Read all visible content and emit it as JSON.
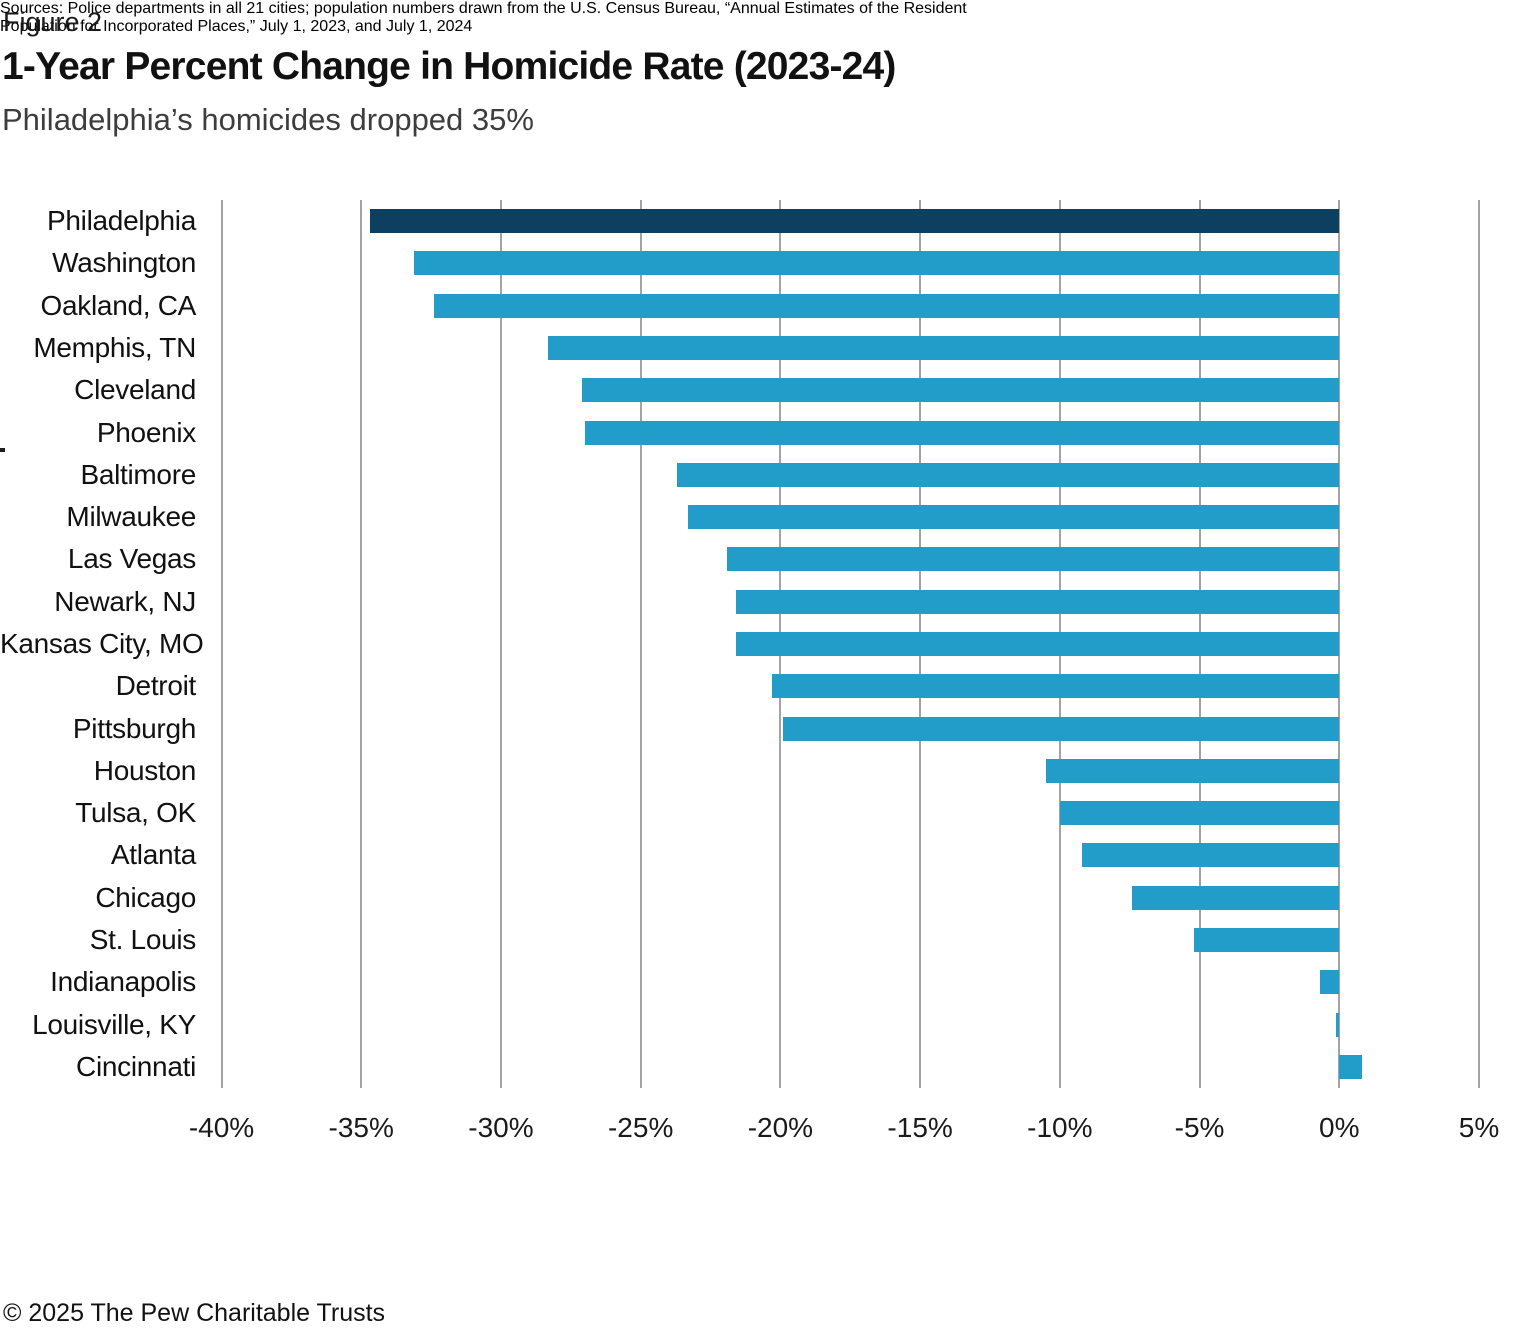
{
  "header": {
    "figure_label": "Figure 2",
    "title": "1-Year Percent Change in Homicide Rate (2023-24)",
    "subtitle": "Philadelphia’s homicides dropped 35%"
  },
  "footer": {
    "sources_line1": "Sources: Police departments in all 21 cities; population numbers drawn from the U.S. Census Bureau, “Annual Estimates of the Resident",
    "sources_line2": "Population for Incorporated Places,” July 1, 2023, and July 1, 2024",
    "copyright": "© 2025 The Pew Charitable Trusts"
  },
  "chart_data": {
    "type": "bar",
    "orientation": "horizontal",
    "title": "1-Year Percent Change in Homicide Rate (2023-24)",
    "subtitle": "Philadelphia’s homicides dropped 35%",
    "categories": [
      "Philadelphia",
      "Washington",
      "Oakland, CA",
      "Memphis, TN",
      "Cleveland",
      "Phoenix",
      "Baltimore",
      "Milwaukee",
      "Las Vegas",
      "Newark, NJ",
      "Kansas City, MO",
      "Detroit",
      "Pittsburgh",
      "Houston",
      "Tulsa, OK",
      "Atlanta",
      "Chicago",
      "St. Louis",
      "Indianapolis",
      "Louisville, KY",
      "Cincinnati"
    ],
    "values": [
      -34.7,
      -33.1,
      -32.4,
      -28.3,
      -27.1,
      -27.0,
      -23.7,
      -23.3,
      -21.9,
      -21.6,
      -21.6,
      -20.3,
      -19.9,
      -10.5,
      -10.0,
      -9.2,
      -7.4,
      -5.2,
      -0.7,
      -0.1,
      0.8
    ],
    "highlight_category": "Philadelphia",
    "xlim": [
      -40,
      5
    ],
    "tick_values": [
      -40,
      -35,
      -30,
      -25,
      -20,
      -15,
      -10,
      -5,
      0,
      5
    ],
    "tick_labels": [
      "-40%",
      "-35%",
      "-30%",
      "-25%",
      "-20%",
      "-15%",
      "-10%",
      "-5%",
      "0%",
      "5%"
    ],
    "grid": "vertical",
    "legend": "none",
    "colors": {
      "bar": "#229cc8",
      "highlight_bar": "#0c3f60",
      "gridline": "#a3a3a3",
      "text": "#111111"
    }
  }
}
